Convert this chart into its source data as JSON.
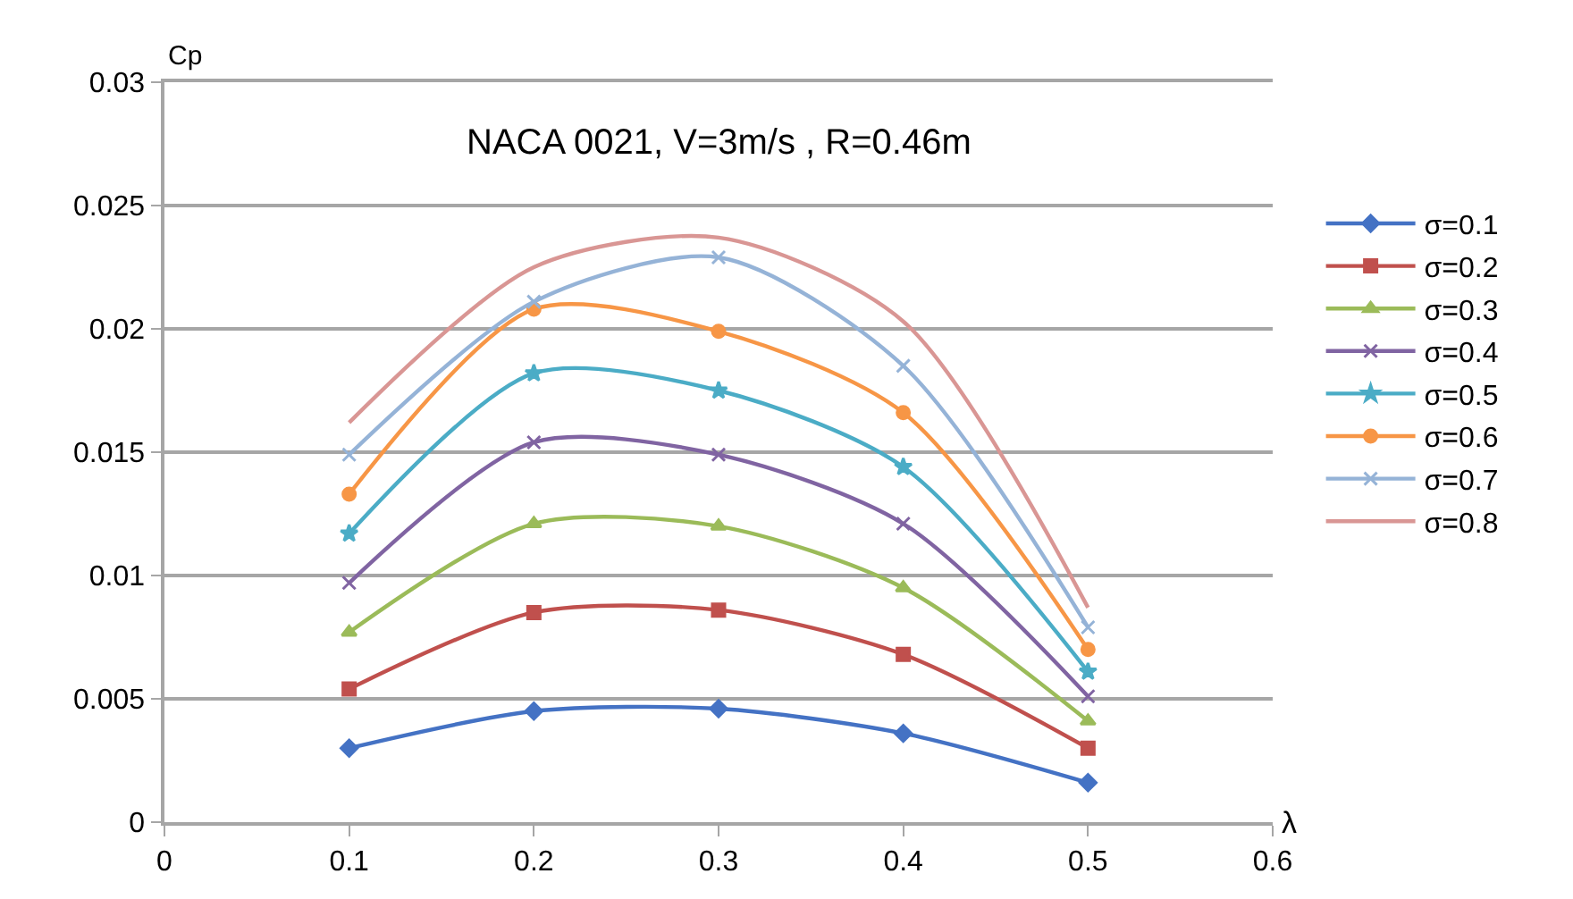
{
  "chart_data": {
    "type": "line",
    "xlabel": "λ",
    "ylabel": "Cp",
    "annotations": [
      "NACA 0021, V=3m/s , R=0.46m"
    ],
    "x": [
      0.1,
      0.2,
      0.3,
      0.4,
      0.5
    ],
    "xlim": [
      0,
      0.6
    ],
    "xticks": [
      0,
      0.1,
      0.2,
      0.3,
      0.4,
      0.5,
      0.6
    ],
    "ylim": [
      0,
      0.03
    ],
    "yticks": [
      0,
      0.005,
      0.01,
      0.015,
      0.02,
      0.025,
      0.03
    ],
    "grid": "y",
    "legend": "right",
    "series": [
      {
        "name": "σ=0.1",
        "color": "#4472c4",
        "marker": "diamond",
        "values": [
          0.003,
          0.0045,
          0.0046,
          0.0036,
          0.0016
        ]
      },
      {
        "name": "σ=0.2",
        "color": "#c0504d",
        "marker": "square",
        "values": [
          0.0054,
          0.0085,
          0.0086,
          0.0068,
          0.003
        ]
      },
      {
        "name": "σ=0.3",
        "color": "#9bbb59",
        "marker": "triangle",
        "values": [
          0.0077,
          0.0121,
          0.012,
          0.0095,
          0.0041
        ]
      },
      {
        "name": "σ=0.4",
        "color": "#8064a2",
        "marker": "cross",
        "values": [
          0.0097,
          0.0154,
          0.0149,
          0.0121,
          0.0051
        ]
      },
      {
        "name": "σ=0.5",
        "color": "#4bacc6",
        "marker": "star",
        "values": [
          0.0117,
          0.0182,
          0.0175,
          0.0144,
          0.0061
        ]
      },
      {
        "name": "σ=0.6",
        "color": "#f79646",
        "marker": "circle",
        "values": [
          0.0133,
          0.0208,
          0.0199,
          0.0166,
          0.007
        ]
      },
      {
        "name": "σ=0.7",
        "color": "#95b3d7",
        "marker": "cross",
        "values": [
          0.0149,
          0.0211,
          0.0229,
          0.0185,
          0.0079
        ]
      },
      {
        "name": "σ=0.8",
        "color": "#d99694",
        "marker": "none",
        "values": [
          0.0162,
          0.0225,
          0.0237,
          0.0203,
          0.0087
        ]
      }
    ]
  }
}
